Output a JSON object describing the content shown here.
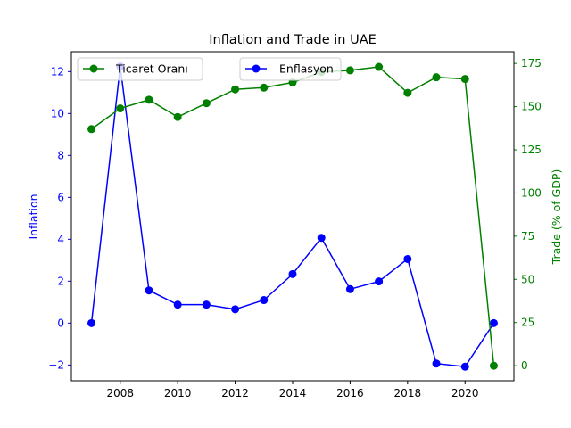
{
  "chart_data": {
    "type": "line",
    "title": "Inflation and Trade in UAE",
    "x": [
      2007,
      2008,
      2009,
      2010,
      2011,
      2012,
      2013,
      2014,
      2015,
      2016,
      2017,
      2018,
      2019,
      2020,
      2021
    ],
    "x_ticks": [
      "2008",
      "2010",
      "2012",
      "2014",
      "2016",
      "2018",
      "2020"
    ],
    "xlim": [
      2006.3,
      2021.7
    ],
    "left_axis": {
      "label": "Inflation",
      "color": "#0000ff",
      "ylim": [
        -2.75,
        12.95
      ],
      "ticks": [
        "−2",
        "0",
        "2",
        "4",
        "6",
        "8",
        "10",
        "12"
      ]
    },
    "right_axis": {
      "label": "Trade (% of GDP)",
      "color": "#008000",
      "ylim": [
        -8.7,
        181.8
      ],
      "ticks": [
        "0",
        "25",
        "50",
        "75",
        "100",
        "125",
        "150",
        "175"
      ]
    },
    "series": [
      {
        "name": "Enflasyon",
        "axis": "left",
        "color": "#0000ff",
        "values": [
          0.0,
          12.25,
          1.56,
          0.88,
          0.88,
          0.66,
          1.1,
          2.34,
          4.07,
          1.62,
          1.99,
          3.06,
          -1.93,
          -2.08,
          0.0
        ]
      },
      {
        "name": "Ticaret Oranı",
        "axis": "right",
        "color": "#008000",
        "values": [
          137,
          149,
          154,
          144,
          152,
          160,
          161,
          164,
          170,
          171,
          173,
          158,
          167,
          166,
          0
        ]
      }
    ],
    "legend": [
      "upper-left",
      "upper-center"
    ],
    "grid": false
  }
}
